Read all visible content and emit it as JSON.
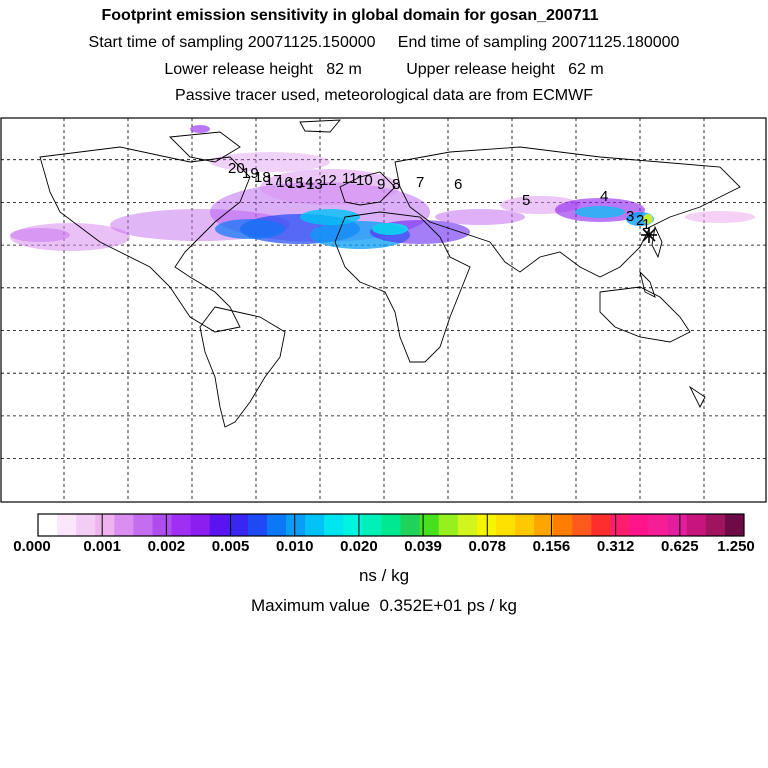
{
  "header": {
    "title": "Footprint emission sensitivity in global domain for gosan_200711",
    "sampling": "Start time of sampling 20071125.150000     End time of sampling 20071125.180000",
    "release": "Lower release height   82 m          Upper release height   62 m",
    "tracer": "Passive tracer used, meteorological data are from ECMWF"
  },
  "map": {
    "domain": "global",
    "grid_lines": "dashed",
    "trajectory_labels": [
      "20",
      "19",
      "18",
      "17",
      "16",
      "15",
      "14",
      "13",
      "12",
      "11",
      "10",
      "9",
      "8",
      "7",
      "6",
      "5",
      "4",
      "3",
      "2",
      "1"
    ],
    "receptor": "gosan"
  },
  "colorbar": {
    "colors": [
      "#ffffff",
      "#fbe6fb",
      "#f4cdf4",
      "#efb4ef",
      "#d98ef0",
      "#c46df0",
      "#b04cf0",
      "#a02ff5",
      "#8c1ef0",
      "#5a14f0",
      "#3a26f2",
      "#1e4af5",
      "#0b78f5",
      "#0a9df5",
      "#00c3f5",
      "#00e6f0",
      "#00f5e0",
      "#00f0b8",
      "#00e890",
      "#1ed25a",
      "#46e01e",
      "#96f01e",
      "#d2f51e",
      "#f5f500",
      "#ffe100",
      "#ffc800",
      "#ffa500",
      "#ff7d00",
      "#ff5a1e",
      "#ff2e2e",
      "#ff1e6e",
      "#ff148c",
      "#f51e96",
      "#e11e9b",
      "#c8147d",
      "#a0145f",
      "#6e0a46"
    ],
    "ticks": [
      "0.000",
      "0.001",
      "0.002",
      "0.005",
      "0.010",
      "0.020",
      "0.039",
      "0.078",
      "0.156",
      "0.312",
      "0.625",
      "1.250"
    ]
  },
  "units": "ns / kg",
  "max_value": "Maximum value  0.352E+01 ps / kg"
}
